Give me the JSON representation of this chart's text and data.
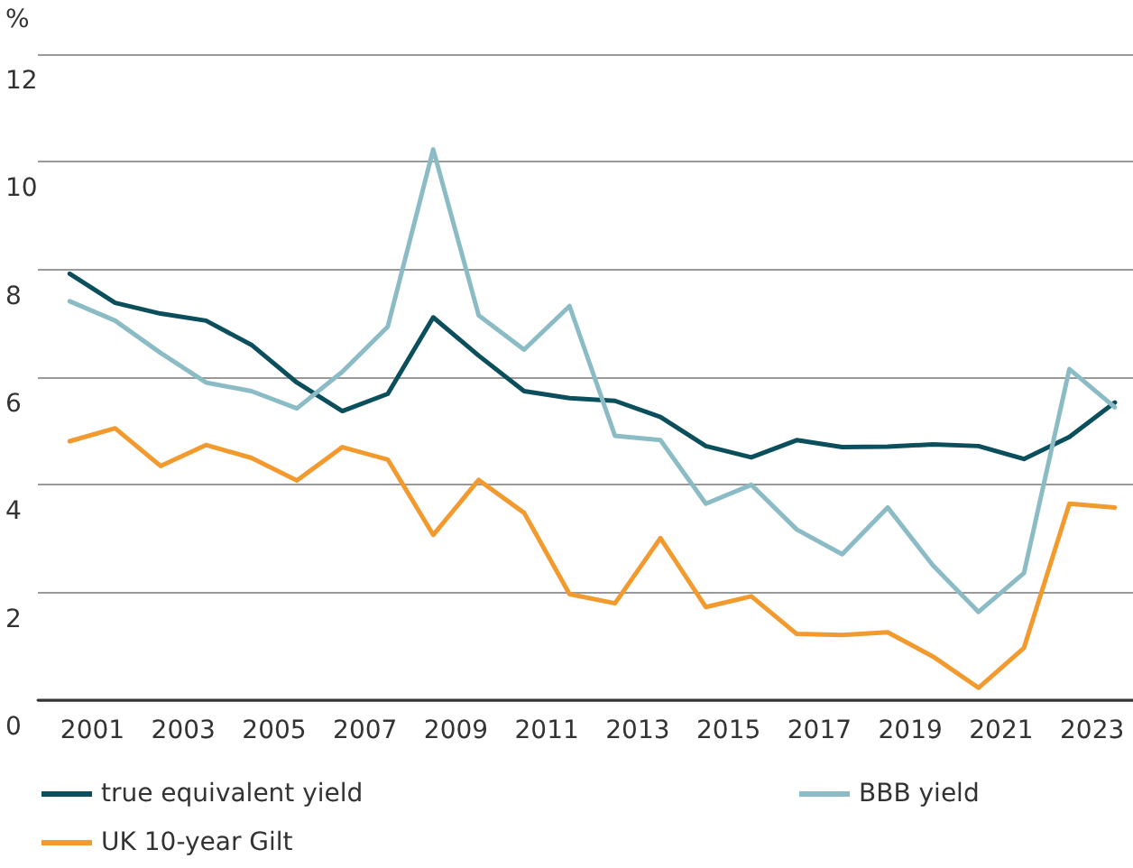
{
  "chart_data": {
    "type": "line",
    "ylabel": "%",
    "x": [
      2000.5,
      2001.5,
      2002.5,
      2003.5,
      2004.5,
      2005.5,
      2006.5,
      2007.5,
      2008.5,
      2009.5,
      2010.5,
      2011.5,
      2012.5,
      2013.5,
      2014.5,
      2015.5,
      2016.5,
      2017.5,
      2018.5,
      2019.5,
      2020.5,
      2021.5,
      2022.5,
      2023.5
    ],
    "series": [
      {
        "name": "true equivalent yield",
        "color": "#0b4f5c",
        "values": [
          7.92,
          7.38,
          7.18,
          7.05,
          6.6,
          5.9,
          5.37,
          5.69,
          7.11,
          6.4,
          5.74,
          5.61,
          5.56,
          5.26,
          4.72,
          4.51,
          4.83,
          4.7,
          4.71,
          4.75,
          4.72,
          4.48,
          4.89,
          5.53
        ]
      },
      {
        "name": "BBB yield",
        "color": "#8bbcc6",
        "values": [
          7.41,
          7.05,
          6.45,
          5.9,
          5.74,
          5.42,
          6.1,
          6.94,
          10.23,
          7.15,
          6.51,
          7.32,
          4.91,
          4.83,
          3.65,
          4.0,
          3.17,
          2.71,
          3.58,
          2.5,
          1.64,
          2.36,
          6.15,
          5.44
        ]
      },
      {
        "name": "UK 10-year Gilt",
        "color": "#f39a2e",
        "values": [
          4.81,
          5.05,
          4.35,
          4.74,
          4.5,
          4.08,
          4.7,
          4.47,
          3.07,
          4.09,
          3.48,
          1.97,
          1.8,
          3.01,
          1.73,
          1.93,
          1.23,
          1.21,
          1.26,
          0.81,
          0.23,
          0.97,
          3.65,
          3.58
        ]
      }
    ],
    "xlim": [
      1999.8,
      2023.9
    ],
    "xticks": [
      2001,
      2003,
      2005,
      2007,
      2009,
      2011,
      2013,
      2015,
      2017,
      2019,
      2021,
      2023
    ],
    "ylim": [
      0,
      12
    ],
    "yticks": [
      0,
      2,
      4,
      6,
      8,
      10,
      12
    ],
    "grid": "y",
    "legend": "bottom",
    "marker": "none",
    "line_style": "solid"
  }
}
